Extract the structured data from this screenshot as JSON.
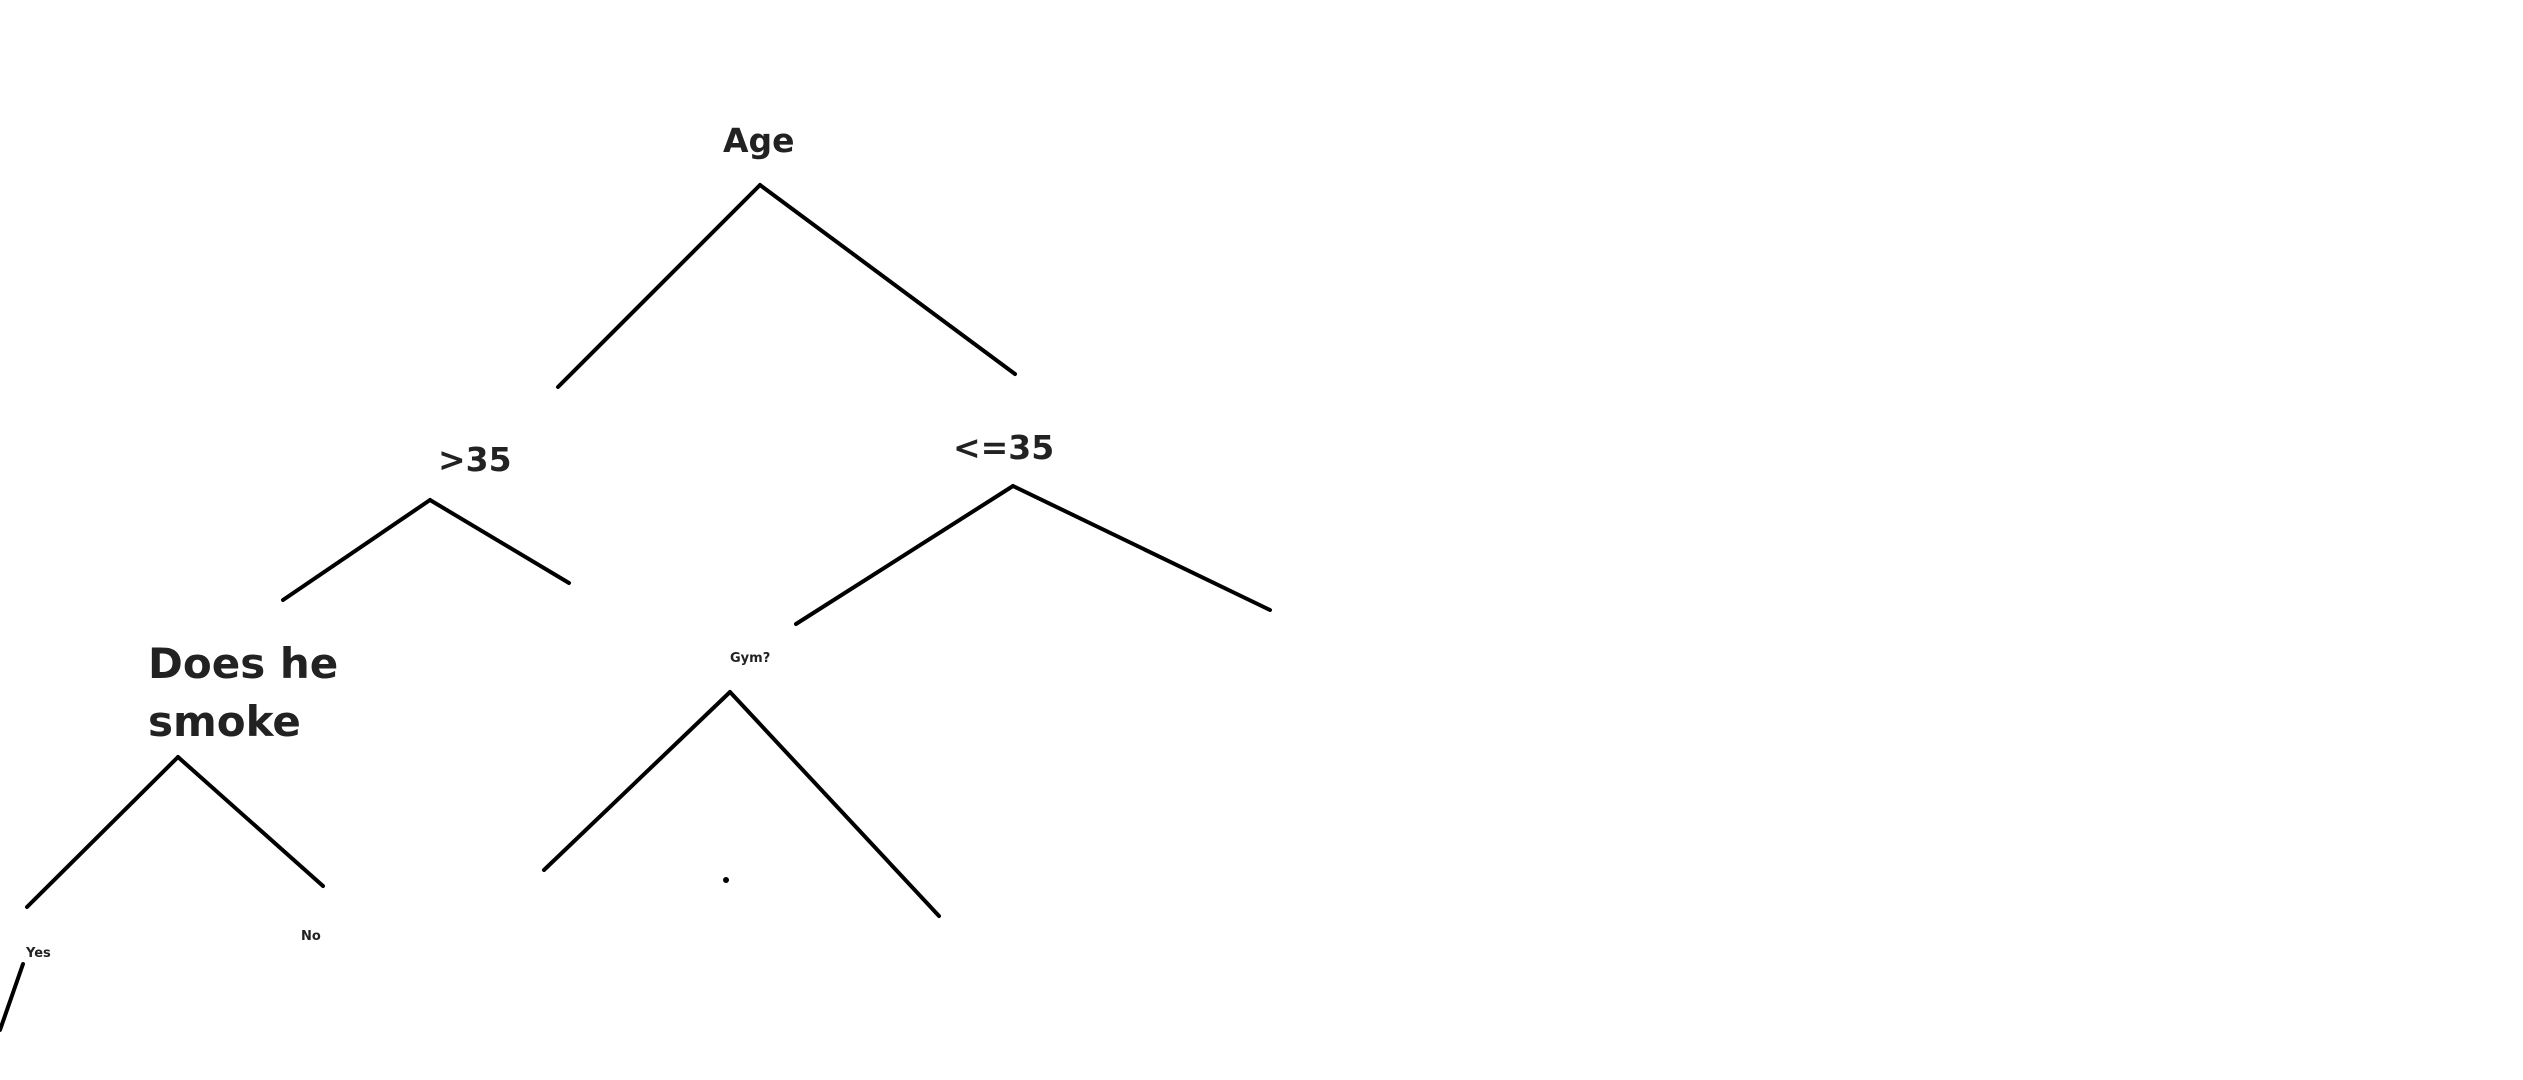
{
  "diagram": {
    "line_color": "#000000",
    "text_color": "#222222",
    "nodes": {
      "age": "Age",
      "age_gt35": ">35",
      "age_le35": "<=35",
      "smoke_line1": "Does he",
      "smoke_line2": "smoke",
      "gym": "Gym?",
      "yes": "Yes",
      "no": "No"
    }
  }
}
